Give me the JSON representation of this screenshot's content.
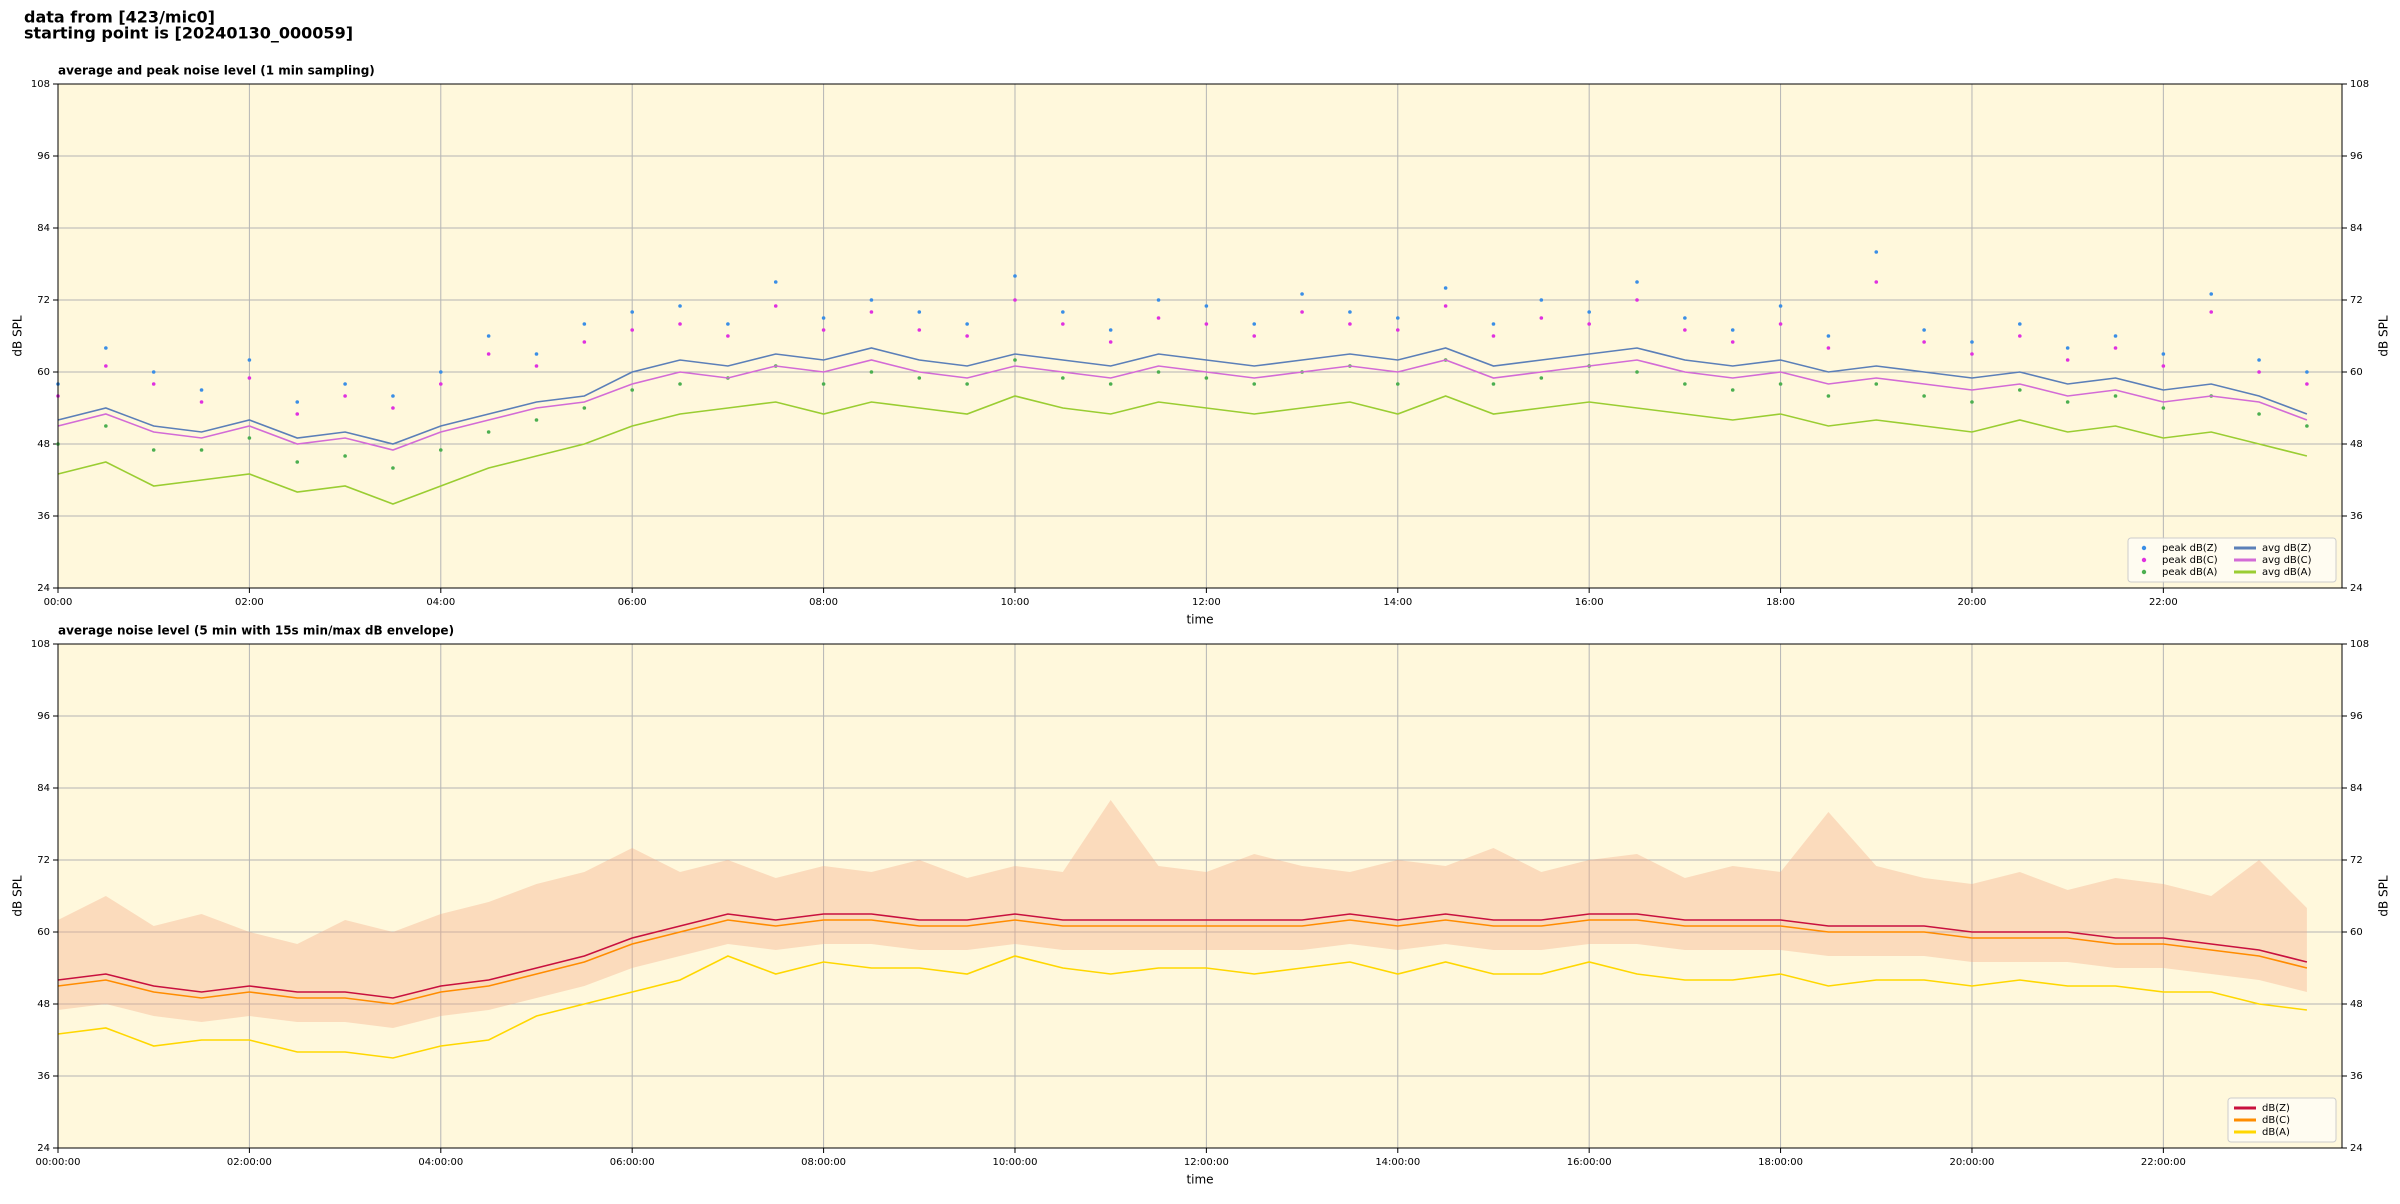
{
  "header": {
    "lines": [
      "data from [423/mic0]",
      "starting point is [20240130_000059]"
    ]
  },
  "chart_data": [
    {
      "type": "line",
      "title": "average and peak noise level (1 min sampling)",
      "xlabel": "time",
      "ylabel": "dB SPL",
      "x": [
        0,
        30,
        60,
        90,
        120,
        150,
        180,
        210,
        240,
        270,
        300,
        330,
        360,
        390,
        420,
        450,
        480,
        510,
        540,
        570,
        600,
        630,
        660,
        690,
        720,
        750,
        780,
        810,
        840,
        870,
        900,
        930,
        960,
        990,
        1020,
        1050,
        1080,
        1110,
        1140,
        1170,
        1200,
        1230,
        1260,
        1290,
        1320,
        1350,
        1380,
        1410
      ],
      "series": [
        {
          "name": "peak dB(Z)",
          "color": "#3a8ee6",
          "style": "scatter",
          "values": [
            58,
            64,
            60,
            57,
            62,
            55,
            58,
            56,
            60,
            66,
            63,
            68,
            70,
            71,
            68,
            75,
            69,
            72,
            70,
            68,
            76,
            70,
            67,
            72,
            71,
            68,
            73,
            70,
            69,
            74,
            68,
            72,
            70,
            75,
            69,
            67,
            71,
            66,
            80,
            67,
            65,
            68,
            64,
            66,
            63,
            73,
            62,
            60
          ]
        },
        {
          "name": "peak dB(C)",
          "color": "#e030e0",
          "style": "scatter",
          "values": [
            56,
            61,
            58,
            55,
            59,
            53,
            56,
            54,
            58,
            63,
            61,
            65,
            67,
            68,
            66,
            71,
            67,
            70,
            67,
            66,
            72,
            68,
            65,
            69,
            68,
            66,
            70,
            68,
            67,
            71,
            66,
            69,
            68,
            72,
            67,
            65,
            68,
            64,
            75,
            65,
            63,
            66,
            62,
            64,
            61,
            70,
            60,
            58
          ]
        },
        {
          "name": "peak dB(A)",
          "color": "#4caf50",
          "style": "scatter",
          "values": [
            48,
            51,
            47,
            47,
            49,
            45,
            46,
            44,
            47,
            50,
            52,
            54,
            57,
            58,
            59,
            61,
            58,
            60,
            59,
            58,
            62,
            59,
            58,
            60,
            59,
            58,
            60,
            61,
            58,
            62,
            58,
            59,
            61,
            60,
            58,
            57,
            58,
            56,
            58,
            56,
            55,
            57,
            55,
            56,
            54,
            56,
            53,
            51
          ]
        },
        {
          "name": "avg dB(Z)",
          "color": "#5b7fb8",
          "style": "line",
          "values": [
            52,
            54,
            51,
            50,
            52,
            49,
            50,
            48,
            51,
            53,
            55,
            56,
            60,
            62,
            61,
            63,
            62,
            64,
            62,
            61,
            63,
            62,
            61,
            63,
            62,
            61,
            62,
            63,
            62,
            64,
            61,
            62,
            63,
            64,
            62,
            61,
            62,
            60,
            61,
            60,
            59,
            60,
            58,
            59,
            57,
            58,
            56,
            53
          ]
        },
        {
          "name": "avg dB(C)",
          "color": "#d36bd6",
          "style": "line",
          "values": [
            51,
            53,
            50,
            49,
            51,
            48,
            49,
            47,
            50,
            52,
            54,
            55,
            58,
            60,
            59,
            61,
            60,
            62,
            60,
            59,
            61,
            60,
            59,
            61,
            60,
            59,
            60,
            61,
            60,
            62,
            59,
            60,
            61,
            62,
            60,
            59,
            60,
            58,
            59,
            58,
            57,
            58,
            56,
            57,
            55,
            56,
            55,
            52
          ]
        },
        {
          "name": "avg dB(A)",
          "color": "#9acd32",
          "style": "line",
          "values": [
            43,
            45,
            41,
            42,
            43,
            40,
            41,
            38,
            41,
            44,
            46,
            48,
            51,
            53,
            54,
            55,
            53,
            55,
            54,
            53,
            56,
            54,
            53,
            55,
            54,
            53,
            54,
            55,
            53,
            56,
            53,
            54,
            55,
            54,
            53,
            52,
            53,
            51,
            52,
            51,
            50,
            52,
            50,
            51,
            49,
            50,
            48,
            46
          ]
        }
      ],
      "xlim": [
        0,
        1432
      ],
      "xticks": [
        {
          "value": 0,
          "label": "00:00"
        },
        {
          "value": 120,
          "label": "02:00"
        },
        {
          "value": 240,
          "label": "04:00"
        },
        {
          "value": 360,
          "label": "06:00"
        },
        {
          "value": 480,
          "label": "08:00"
        },
        {
          "value": 600,
          "label": "10:00"
        },
        {
          "value": 720,
          "label": "12:00"
        },
        {
          "value": 840,
          "label": "14:00"
        },
        {
          "value": 960,
          "label": "16:00"
        },
        {
          "value": 1080,
          "label": "18:00"
        },
        {
          "value": 1200,
          "label": "20:00"
        },
        {
          "value": 1320,
          "label": "22:00"
        }
      ],
      "ylim": [
        24,
        108
      ],
      "yticks": [
        24,
        36,
        48,
        60,
        72,
        84,
        96,
        108
      ],
      "grid": true,
      "legend": "lower right",
      "legend_columns": 2
    },
    {
      "type": "line",
      "title": "average noise level (5 min with 15s min/max dB envelope)",
      "xlabel": "time",
      "ylabel": "dB SPL",
      "x": [
        0,
        30,
        60,
        90,
        120,
        150,
        180,
        210,
        240,
        270,
        300,
        330,
        360,
        390,
        420,
        450,
        480,
        510,
        540,
        570,
        600,
        630,
        660,
        690,
        720,
        750,
        780,
        810,
        840,
        870,
        900,
        930,
        960,
        990,
        1020,
        1050,
        1080,
        1110,
        1140,
        1170,
        1200,
        1230,
        1260,
        1290,
        1320,
        1350,
        1380,
        1410
      ],
      "band": {
        "color": "#f4a582",
        "low": [
          47,
          48,
          46,
          45,
          46,
          45,
          45,
          44,
          46,
          47,
          49,
          51,
          54,
          56,
          58,
          57,
          58,
          58,
          57,
          57,
          58,
          57,
          57,
          57,
          57,
          57,
          57,
          58,
          57,
          58,
          57,
          57,
          58,
          58,
          57,
          57,
          57,
          56,
          56,
          56,
          55,
          55,
          55,
          54,
          54,
          53,
          52,
          50
        ],
        "high": [
          62,
          66,
          61,
          63,
          60,
          58,
          62,
          60,
          63,
          65,
          68,
          70,
          74,
          70,
          72,
          69,
          71,
          70,
          72,
          69,
          71,
          70,
          82,
          71,
          70,
          73,
          71,
          70,
          72,
          71,
          74,
          70,
          72,
          73,
          69,
          71,
          70,
          80,
          71,
          69,
          68,
          70,
          67,
          69,
          68,
          66,
          72,
          64
        ]
      },
      "series": [
        {
          "name": "dB(Z)",
          "color": "#c8103e",
          "style": "line",
          "values": [
            52,
            53,
            51,
            50,
            51,
            50,
            50,
            49,
            51,
            52,
            54,
            56,
            59,
            61,
            63,
            62,
            63,
            63,
            62,
            62,
            63,
            62,
            62,
            62,
            62,
            62,
            62,
            63,
            62,
            63,
            62,
            62,
            63,
            63,
            62,
            62,
            62,
            61,
            61,
            61,
            60,
            60,
            60,
            59,
            59,
            58,
            57,
            55
          ]
        },
        {
          "name": "dB(C)",
          "color": "#ff8c00",
          "style": "line",
          "values": [
            51,
            52,
            50,
            49,
            50,
            49,
            49,
            48,
            50,
            51,
            53,
            55,
            58,
            60,
            62,
            61,
            62,
            62,
            61,
            61,
            62,
            61,
            61,
            61,
            61,
            61,
            61,
            62,
            61,
            62,
            61,
            61,
            62,
            62,
            61,
            61,
            61,
            60,
            60,
            60,
            59,
            59,
            59,
            58,
            58,
            57,
            56,
            54
          ]
        },
        {
          "name": "dB(A)",
          "color": "#ffd700",
          "style": "line",
          "values": [
            43,
            44,
            41,
            42,
            42,
            40,
            40,
            39,
            41,
            42,
            46,
            48,
            50,
            52,
            56,
            53,
            55,
            54,
            54,
            53,
            56,
            54,
            53,
            54,
            54,
            53,
            54,
            55,
            53,
            55,
            53,
            53,
            55,
            53,
            52,
            52,
            53,
            51,
            52,
            52,
            51,
            52,
            51,
            51,
            50,
            50,
            48,
            47
          ]
        }
      ],
      "xlim": [
        0,
        1432
      ],
      "xticks": [
        {
          "value": 0,
          "label": "00:00:00"
        },
        {
          "value": 120,
          "label": "02:00:00"
        },
        {
          "value": 240,
          "label": "04:00:00"
        },
        {
          "value": 360,
          "label": "06:00:00"
        },
        {
          "value": 480,
          "label": "08:00:00"
        },
        {
          "value": 600,
          "label": "10:00:00"
        },
        {
          "value": 720,
          "label": "12:00:00"
        },
        {
          "value": 840,
          "label": "14:00:00"
        },
        {
          "value": 960,
          "label": "16:00:00"
        },
        {
          "value": 1080,
          "label": "18:00:00"
        },
        {
          "value": 1200,
          "label": "20:00:00"
        },
        {
          "value": 1320,
          "label": "22:00:00"
        }
      ],
      "ylim": [
        24,
        108
      ],
      "yticks": [
        24,
        36,
        48,
        60,
        72,
        84,
        96,
        108
      ],
      "grid": true,
      "legend": "lower right",
      "legend_columns": 1
    }
  ]
}
